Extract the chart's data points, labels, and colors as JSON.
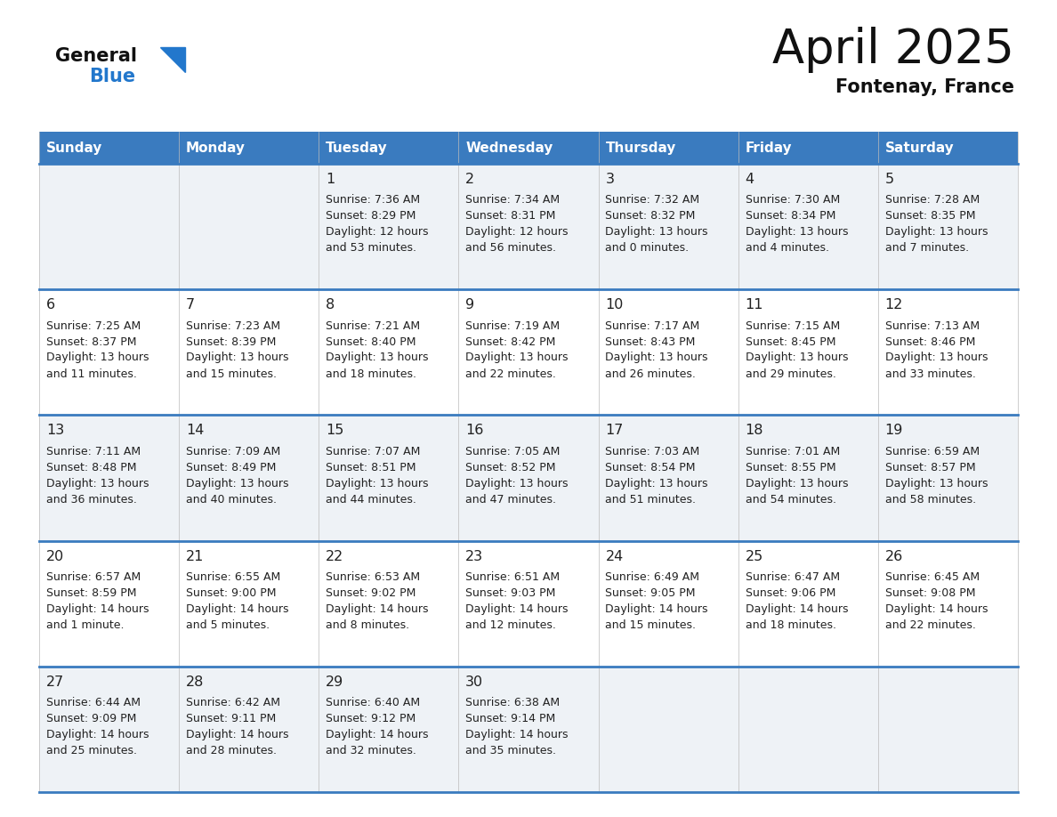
{
  "title": "April 2025",
  "subtitle": "Fontenay, France",
  "header_bg": "#3a7bbf",
  "header_text": "#ffffff",
  "days_of_week": [
    "Sunday",
    "Monday",
    "Tuesday",
    "Wednesday",
    "Thursday",
    "Friday",
    "Saturday"
  ],
  "cell_bg_row0": "#eef2f6",
  "cell_bg_row1": "#ffffff",
  "row_separator_color": "#3a7bbf",
  "text_color": "#222222",
  "logo_general_color": "#111111",
  "logo_blue_color": "#2277cc",
  "logo_triangle_color": "#2277cc",
  "days": [
    {
      "day": 1,
      "col": 2,
      "row": 0,
      "sunrise": "7:36 AM",
      "sunset": "8:29 PM",
      "dl1": "Daylight: 12 hours",
      "dl2": "and 53 minutes."
    },
    {
      "day": 2,
      "col": 3,
      "row": 0,
      "sunrise": "7:34 AM",
      "sunset": "8:31 PM",
      "dl1": "Daylight: 12 hours",
      "dl2": "and 56 minutes."
    },
    {
      "day": 3,
      "col": 4,
      "row": 0,
      "sunrise": "7:32 AM",
      "sunset": "8:32 PM",
      "dl1": "Daylight: 13 hours",
      "dl2": "and 0 minutes."
    },
    {
      "day": 4,
      "col": 5,
      "row": 0,
      "sunrise": "7:30 AM",
      "sunset": "8:34 PM",
      "dl1": "Daylight: 13 hours",
      "dl2": "and 4 minutes."
    },
    {
      "day": 5,
      "col": 6,
      "row": 0,
      "sunrise": "7:28 AM",
      "sunset": "8:35 PM",
      "dl1": "Daylight: 13 hours",
      "dl2": "and 7 minutes."
    },
    {
      "day": 6,
      "col": 0,
      "row": 1,
      "sunrise": "7:25 AM",
      "sunset": "8:37 PM",
      "dl1": "Daylight: 13 hours",
      "dl2": "and 11 minutes."
    },
    {
      "day": 7,
      "col": 1,
      "row": 1,
      "sunrise": "7:23 AM",
      "sunset": "8:39 PM",
      "dl1": "Daylight: 13 hours",
      "dl2": "and 15 minutes."
    },
    {
      "day": 8,
      "col": 2,
      "row": 1,
      "sunrise": "7:21 AM",
      "sunset": "8:40 PM",
      "dl1": "Daylight: 13 hours",
      "dl2": "and 18 minutes."
    },
    {
      "day": 9,
      "col": 3,
      "row": 1,
      "sunrise": "7:19 AM",
      "sunset": "8:42 PM",
      "dl1": "Daylight: 13 hours",
      "dl2": "and 22 minutes."
    },
    {
      "day": 10,
      "col": 4,
      "row": 1,
      "sunrise": "7:17 AM",
      "sunset": "8:43 PM",
      "dl1": "Daylight: 13 hours",
      "dl2": "and 26 minutes."
    },
    {
      "day": 11,
      "col": 5,
      "row": 1,
      "sunrise": "7:15 AM",
      "sunset": "8:45 PM",
      "dl1": "Daylight: 13 hours",
      "dl2": "and 29 minutes."
    },
    {
      "day": 12,
      "col": 6,
      "row": 1,
      "sunrise": "7:13 AM",
      "sunset": "8:46 PM",
      "dl1": "Daylight: 13 hours",
      "dl2": "and 33 minutes."
    },
    {
      "day": 13,
      "col": 0,
      "row": 2,
      "sunrise": "7:11 AM",
      "sunset": "8:48 PM",
      "dl1": "Daylight: 13 hours",
      "dl2": "and 36 minutes."
    },
    {
      "day": 14,
      "col": 1,
      "row": 2,
      "sunrise": "7:09 AM",
      "sunset": "8:49 PM",
      "dl1": "Daylight: 13 hours",
      "dl2": "and 40 minutes."
    },
    {
      "day": 15,
      "col": 2,
      "row": 2,
      "sunrise": "7:07 AM",
      "sunset": "8:51 PM",
      "dl1": "Daylight: 13 hours",
      "dl2": "and 44 minutes."
    },
    {
      "day": 16,
      "col": 3,
      "row": 2,
      "sunrise": "7:05 AM",
      "sunset": "8:52 PM",
      "dl1": "Daylight: 13 hours",
      "dl2": "and 47 minutes."
    },
    {
      "day": 17,
      "col": 4,
      "row": 2,
      "sunrise": "7:03 AM",
      "sunset": "8:54 PM",
      "dl1": "Daylight: 13 hours",
      "dl2": "and 51 minutes."
    },
    {
      "day": 18,
      "col": 5,
      "row": 2,
      "sunrise": "7:01 AM",
      "sunset": "8:55 PM",
      "dl1": "Daylight: 13 hours",
      "dl2": "and 54 minutes."
    },
    {
      "day": 19,
      "col": 6,
      "row": 2,
      "sunrise": "6:59 AM",
      "sunset": "8:57 PM",
      "dl1": "Daylight: 13 hours",
      "dl2": "and 58 minutes."
    },
    {
      "day": 20,
      "col": 0,
      "row": 3,
      "sunrise": "6:57 AM",
      "sunset": "8:59 PM",
      "dl1": "Daylight: 14 hours",
      "dl2": "and 1 minute."
    },
    {
      "day": 21,
      "col": 1,
      "row": 3,
      "sunrise": "6:55 AM",
      "sunset": "9:00 PM",
      "dl1": "Daylight: 14 hours",
      "dl2": "and 5 minutes."
    },
    {
      "day": 22,
      "col": 2,
      "row": 3,
      "sunrise": "6:53 AM",
      "sunset": "9:02 PM",
      "dl1": "Daylight: 14 hours",
      "dl2": "and 8 minutes."
    },
    {
      "day": 23,
      "col": 3,
      "row": 3,
      "sunrise": "6:51 AM",
      "sunset": "9:03 PM",
      "dl1": "Daylight: 14 hours",
      "dl2": "and 12 minutes."
    },
    {
      "day": 24,
      "col": 4,
      "row": 3,
      "sunrise": "6:49 AM",
      "sunset": "9:05 PM",
      "dl1": "Daylight: 14 hours",
      "dl2": "and 15 minutes."
    },
    {
      "day": 25,
      "col": 5,
      "row": 3,
      "sunrise": "6:47 AM",
      "sunset": "9:06 PM",
      "dl1": "Daylight: 14 hours",
      "dl2": "and 18 minutes."
    },
    {
      "day": 26,
      "col": 6,
      "row": 3,
      "sunrise": "6:45 AM",
      "sunset": "9:08 PM",
      "dl1": "Daylight: 14 hours",
      "dl2": "and 22 minutes."
    },
    {
      "day": 27,
      "col": 0,
      "row": 4,
      "sunrise": "6:44 AM",
      "sunset": "9:09 PM",
      "dl1": "Daylight: 14 hours",
      "dl2": "and 25 minutes."
    },
    {
      "day": 28,
      "col": 1,
      "row": 4,
      "sunrise": "6:42 AM",
      "sunset": "9:11 PM",
      "dl1": "Daylight: 14 hours",
      "dl2": "and 28 minutes."
    },
    {
      "day": 29,
      "col": 2,
      "row": 4,
      "sunrise": "6:40 AM",
      "sunset": "9:12 PM",
      "dl1": "Daylight: 14 hours",
      "dl2": "and 32 minutes."
    },
    {
      "day": 30,
      "col": 3,
      "row": 4,
      "sunrise": "6:38 AM",
      "sunset": "9:14 PM",
      "dl1": "Daylight: 14 hours",
      "dl2": "and 35 minutes."
    }
  ]
}
